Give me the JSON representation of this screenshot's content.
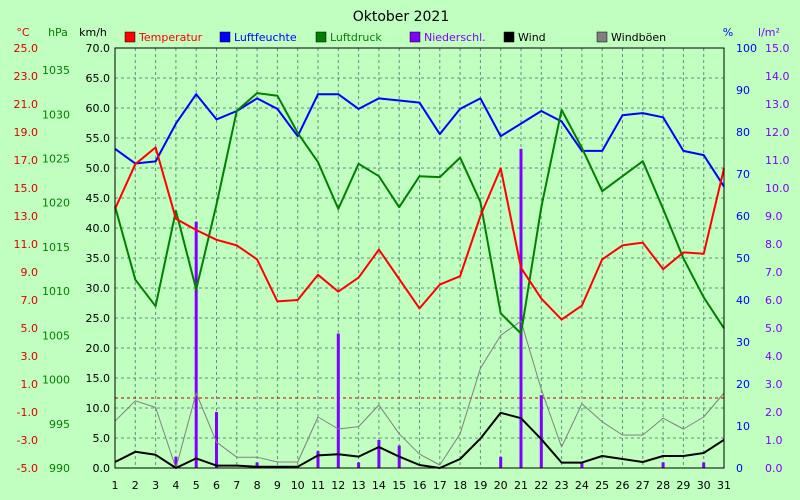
{
  "chart_data": {
    "type": "line",
    "title": "Oktober 2021",
    "x": [
      1,
      2,
      3,
      4,
      5,
      6,
      7,
      8,
      9,
      10,
      11,
      12,
      13,
      14,
      15,
      16,
      17,
      18,
      19,
      20,
      21,
      22,
      23,
      24,
      25,
      26,
      27,
      28,
      29,
      30,
      31
    ],
    "x_ticks": [
      "1",
      "2",
      "3",
      "4",
      "5",
      "6",
      "7",
      "8",
      "9",
      "10",
      "11",
      "12",
      "13",
      "14",
      "15",
      "16",
      "17",
      "18",
      "19",
      "20",
      "21",
      "22",
      "23",
      "24",
      "25",
      "26",
      "27",
      "28",
      "29",
      "30",
      "31"
    ],
    "axes": {
      "temperature": {
        "unit": "°C",
        "range": [
          -5,
          25
        ],
        "color": "#e00000",
        "ticks": [
          "25.0",
          "23.0",
          "21.0",
          "19.0",
          "17.0",
          "15.0",
          "13.0",
          "11.0",
          "9.0",
          "7.0",
          "5.0",
          "3.0",
          "1.0",
          "-1.0",
          "-3.0",
          "-5.0"
        ]
      },
      "pressure": {
        "unit": "hPa",
        "range": [
          990,
          1037.5
        ],
        "color": "#008000",
        "ticks": [
          "1035",
          "1030",
          "1025",
          "1020",
          "1015",
          "1010",
          "1005",
          "1000",
          "995",
          "990"
        ]
      },
      "wind": {
        "unit": "km/h",
        "range": [
          0,
          70
        ],
        "color": "#000000",
        "ticks": [
          "70.0",
          "65.0",
          "60.0",
          "55.0",
          "50.0",
          "45.0",
          "40.0",
          "35.0",
          "30.0",
          "25.0",
          "20.0",
          "15.0",
          "10.0",
          "5.0",
          "0.0"
        ]
      },
      "humidity": {
        "unit": "%",
        "range": [
          0,
          100
        ],
        "color": "#0000ff",
        "ticks": [
          "100",
          "90",
          "80",
          "70",
          "60",
          "50",
          "40",
          "30",
          "20",
          "10",
          "0"
        ]
      },
      "precipitation": {
        "unit": "l/m²",
        "range": [
          0,
          15
        ],
        "color": "#8000ff",
        "ticks": [
          "15.0",
          "14.0",
          "13.0",
          "12.0",
          "11.0",
          "10.0",
          "9.0",
          "8.0",
          "7.0",
          "6.0",
          "5.0",
          "4.0",
          "3.0",
          "2.0",
          "1.0",
          "0.0"
        ]
      }
    },
    "legend": [
      {
        "label": "Temperatur",
        "color": "#ff0000"
      },
      {
        "label": "Luftfeuchte",
        "color": "#0000ff"
      },
      {
        "label": "Luftdruck",
        "color": "#008000"
      },
      {
        "label": "Niederschl.",
        "color": "#8000ff"
      },
      {
        "label": "Wind",
        "color": "#000000"
      },
      {
        "label": "Windböen",
        "color": "#808080"
      }
    ],
    "series": [
      {
        "name": "Temperatur",
        "axis": "temperature",
        "color": "#ff0000",
        "values": [
          13.5,
          16.7,
          17.9,
          12.8,
          12.0,
          11.3,
          10.9,
          9.9,
          6.9,
          7.0,
          8.8,
          7.6,
          8.6,
          10.6,
          8.5,
          6.4,
          8.1,
          8.7,
          13.0,
          16.4,
          9.3,
          7.1,
          5.6,
          6.6,
          9.9,
          10.9,
          11.1,
          9.2,
          10.4,
          10.3,
          16.4
        ]
      },
      {
        "name": "Luftfeuchte",
        "axis": "humidity",
        "color": "#0000ff",
        "values": [
          76,
          72.5,
          73,
          82,
          89,
          83,
          85,
          88,
          85.5,
          79,
          89,
          89,
          85.5,
          88,
          87.5,
          87,
          79.5,
          85.5,
          88,
          79,
          82,
          85,
          82.5,
          75.5,
          75.5,
          84,
          84.5,
          83.5,
          75.5,
          74.5,
          67
        ]
      },
      {
        "name": "Luftdruck",
        "axis": "pressure",
        "color": "#008000",
        "values": [
          1019.6,
          1011.3,
          1008.3,
          1019.1,
          1010.2,
          1019.8,
          1030.4,
          1032.4,
          1032.1,
          1027.9,
          1024.6,
          1019.3,
          1024.4,
          1023,
          1019.5,
          1023,
          1022.9,
          1025.1,
          1020.1,
          1007.5,
          1005.2,
          1019.5,
          1030.5,
          1026.2,
          1021.3,
          1023,
          1024.7,
          1019.3,
          1013.7,
          1009.3,
          1005.8
        ]
      },
      {
        "name": "Wind",
        "axis": "wind",
        "color": "#000000",
        "values": [
          1,
          2.7,
          2.2,
          0,
          1.6,
          0.4,
          0.4,
          0.2,
          0.2,
          0.2,
          2.1,
          2.3,
          1.9,
          3.5,
          1.9,
          0.5,
          0,
          1.5,
          4.9,
          9.2,
          8.3,
          4.8,
          0.9,
          0.9,
          2,
          1.5,
          1,
          2,
          2,
          2.5,
          4.7
        ]
      },
      {
        "name": "Windböen",
        "axis": "wind",
        "color": "#808080",
        "values": [
          7.8,
          11.2,
          10.1,
          0,
          12.5,
          4.3,
          1.8,
          1.8,
          1,
          1,
          8.5,
          6.5,
          6.9,
          10.5,
          5.7,
          2.3,
          0.5,
          5.7,
          16.6,
          22.1,
          24.5,
          13.1,
          3.5,
          10.7,
          7.7,
          5.5,
          5.5,
          8.3,
          6.5,
          8.5,
          12.5
        ]
      },
      {
        "name": "Niederschl.",
        "axis": "precipitation",
        "color": "#8000ff",
        "values": [
          0,
          0,
          0,
          0.4,
          8.8,
          2,
          0,
          0.2,
          0,
          0,
          0.6,
          4.8,
          0.2,
          1,
          0.8,
          0,
          0,
          0,
          0,
          0.4,
          11.4,
          2.6,
          0,
          0.2,
          0,
          0,
          0,
          0.2,
          0,
          0.2,
          0
        ]
      }
    ],
    "grid": true,
    "reference_line": {
      "axis": "temperature",
      "value": 0,
      "style": "dashed",
      "color": "#c00000"
    }
  }
}
